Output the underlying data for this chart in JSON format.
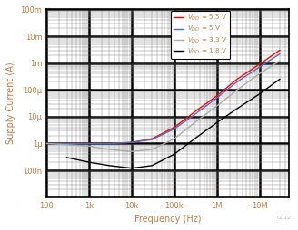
{
  "title": "",
  "xlabel": "Frequency (Hz)",
  "ylabel": "Supply Current (A)",
  "xlim": [
    100,
    50000000.0
  ],
  "ylim": [
    1e-08,
    0.1
  ],
  "legend_labels": [
    "$V_{DD}$ = 5.5 V",
    "$V_{DD}$ = 5 V",
    "$V_{DD}$ = 3.3 V",
    "$V_{DD}$ = 1.8 V"
  ],
  "line_colors": [
    "#ff0000",
    "#4472c4",
    "#aaaaaa",
    "#000000"
  ],
  "line_styles": [
    "-",
    "-",
    "-",
    "-"
  ],
  "series": {
    "5.5V": {
      "x": [
        100,
        300,
        1000,
        3000,
        10000,
        30000,
        100000,
        300000,
        1000000,
        3000000,
        10000000,
        30000000
      ],
      "y": [
        1e-06,
        1e-06,
        1e-06,
        1e-06,
        1.1e-06,
        1.5e-06,
        4e-06,
        1.5e-05,
        6e-05,
        0.00025,
        0.0009,
        0.003
      ]
    },
    "5V": {
      "x": [
        100,
        300,
        1000,
        3000,
        10000,
        30000,
        100000,
        300000,
        1000000,
        3000000,
        10000000,
        30000000
      ],
      "y": [
        1e-06,
        1e-06,
        1e-06,
        1e-06,
        1.1e-06,
        1.4e-06,
        3.5e-06,
        1.2e-05,
        5e-05,
        0.0002,
        0.0007,
        0.0022
      ]
    },
    "3.3V": {
      "x": [
        100,
        300,
        1000,
        3000,
        10000,
        30000,
        100000,
        300000,
        1000000,
        3000000,
        10000000,
        30000000
      ],
      "y": [
        1e-06,
        9e-07,
        8e-07,
        6e-07,
        5e-07,
        6e-07,
        1.5e-06,
        6e-06,
        2.5e-05,
        0.0001,
        0.0004,
        0.0012
      ]
    },
    "1.8V": {
      "x": [
        300,
        1000,
        3000,
        10000,
        30000,
        100000,
        300000,
        1000000,
        3000000,
        10000000,
        30000000
      ],
      "y": [
        3e-07,
        2e-07,
        1.5e-07,
        1.2e-07,
        1.5e-07,
        4e-07,
        1.5e-06,
        6e-06,
        2e-05,
        7e-05,
        0.00025
      ]
    }
  },
  "ytick_labels": [
    "100n",
    "1μ",
    "10μ",
    "100μ",
    "1m",
    "10m",
    "100m"
  ],
  "ytick_vals": [
    1e-07,
    1e-06,
    1e-05,
    0.0001,
    0.001,
    0.01,
    0.1
  ],
  "xtick_labels": [
    "100",
    "1k",
    "10k",
    "100k",
    "1M",
    "10M"
  ],
  "xtick_vals": [
    100,
    1000,
    10000,
    100000,
    1000000,
    10000000
  ],
  "watermark": "C012",
  "background_color": "#ffffff",
  "thick_grid_color": "#000000",
  "thin_grid_color": "#888888",
  "label_color": "#c87941"
}
